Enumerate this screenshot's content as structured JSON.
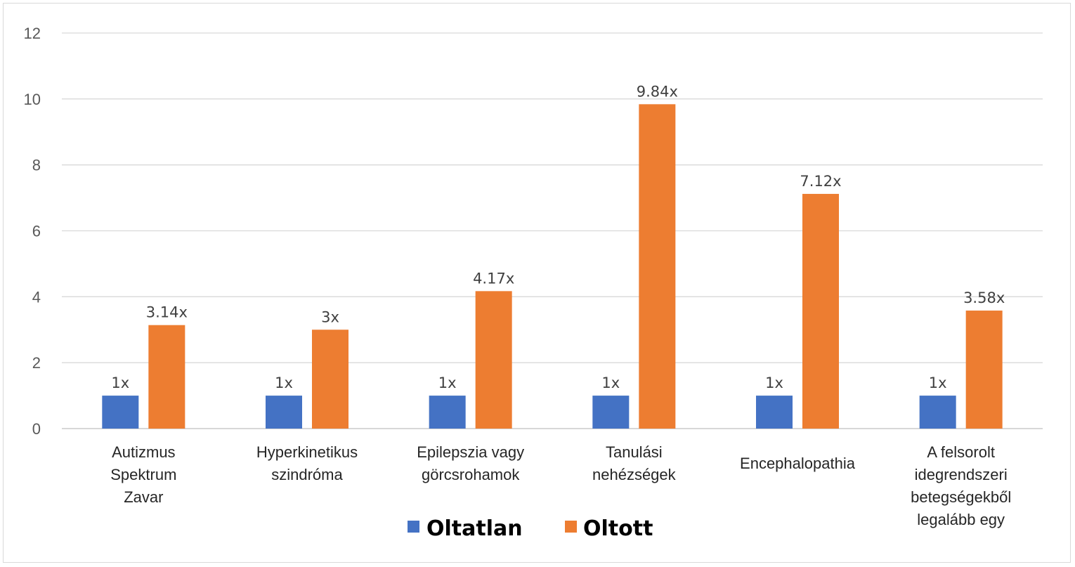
{
  "chart_data": {
    "type": "bar",
    "categories": [
      [
        "Autizmus",
        "Spektrum",
        "Zavar"
      ],
      [
        "Hyperkinetikus",
        "szindróma"
      ],
      [
        "Epilepszia vagy",
        "görcsrohamok"
      ],
      [
        "Tanulási",
        "nehézségek"
      ],
      [
        "Encephalopathia"
      ],
      [
        "A felsorolt",
        "idegrendszeri",
        "betegségekből",
        "legalább egy"
      ]
    ],
    "series": [
      {
        "name": "Oltatlan",
        "color": "#4472c4",
        "values": [
          1,
          1,
          1,
          1,
          1,
          1
        ],
        "labels": [
          "1x",
          "1x",
          "1x",
          "1x",
          "1x",
          "1x"
        ]
      },
      {
        "name": "Oltott",
        "color": "#ed7d31",
        "values": [
          3.14,
          3,
          4.17,
          9.84,
          7.12,
          3.58
        ],
        "labels": [
          "3.14x",
          "3x",
          "4.17x",
          "9.84x",
          "7.12x",
          "3.58x"
        ]
      }
    ],
    "ylim": [
      0,
      12
    ],
    "yticks": [
      0,
      2,
      4,
      6,
      8,
      10,
      12
    ],
    "grid": true,
    "legend_position": "bottom"
  }
}
